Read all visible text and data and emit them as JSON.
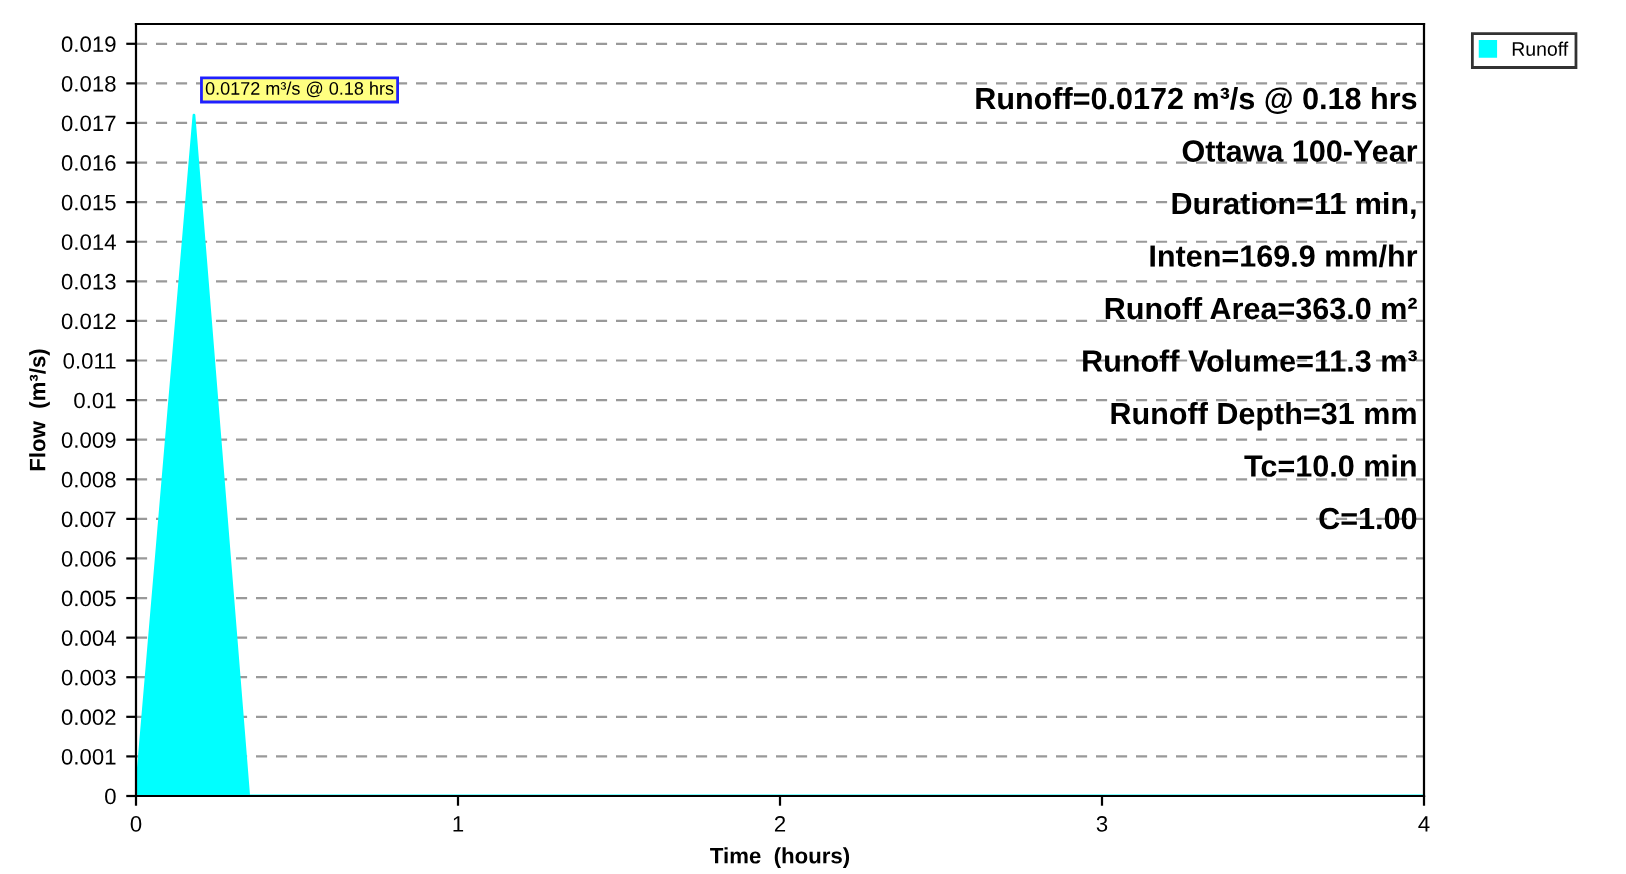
{
  "chart_data": {
    "type": "area",
    "xlabel": "Time  (hours)",
    "ylabel": "Flow  (m³/s)",
    "x": [
      0,
      0.18,
      0.35,
      4
    ],
    "series": [
      {
        "name": "Runoff",
        "color": "#00ffff",
        "values": [
          0,
          0.0172,
          0,
          0
        ]
      }
    ],
    "xlim": [
      0,
      4
    ],
    "xticks": [
      0,
      1,
      2,
      3,
      4
    ],
    "ylim": [
      0,
      0.0195
    ],
    "yticks": [
      0,
      0.001,
      0.002,
      0.003,
      0.004,
      0.005,
      0.006,
      0.007,
      0.008,
      0.009,
      0.01,
      0.011,
      0.012,
      0.013,
      0.014,
      0.015,
      0.016,
      0.017,
      0.018,
      0.019
    ],
    "grid": "y",
    "legend": "top right",
    "annotations": [
      {
        "text": "0.0172 m³/s @ 0.18 hrs",
        "x": 0.18,
        "y": 0.0172
      },
      "Runoff=0.0172 m³/s @ 0.18 hrs",
      "Ottawa 100-Year",
      "Duration=11 min,",
      "Inten=169.9 mm/hr",
      "Runoff Area=363.0 m²",
      "Runoff Volume=11.3 m³",
      "Runoff Depth=31 mm",
      "Tc=10.0 min",
      "C=1.00"
    ]
  }
}
